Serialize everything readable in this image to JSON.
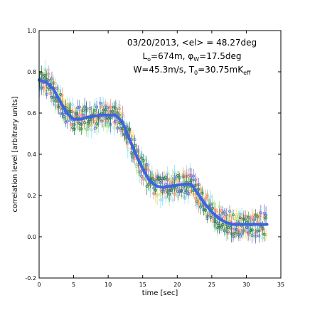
{
  "chart_data": {
    "type": "scatter",
    "xlabel": "time [sec]",
    "ylabel": "correlation level [arbitrary units]",
    "xlim": [
      0,
      35
    ],
    "ylim": [
      -0.2,
      1.0
    ],
    "x_ticks": [
      "0",
      "5",
      "10",
      "15",
      "20",
      "25",
      "30",
      "35"
    ],
    "y_ticks": [
      "-0.2",
      "0.0",
      "0.2",
      "0.4",
      "0.6",
      "0.8",
      "1.0"
    ],
    "annotation": {
      "line1": "03/20/2013, <el> = 48.27deg",
      "line2": {
        "a": "L",
        "a_sub": "o",
        "b": "=674m, φ",
        "b_sub": "W",
        "c": "=17.5deg"
      },
      "line3": {
        "a": "W=45.3m/s, T",
        "a_sub": "0",
        "b": "=30.75mK",
        "b_sub": "eff"
      }
    },
    "fit_line": {
      "color": "#3b66e0",
      "x": [
        0,
        1,
        2,
        3,
        4,
        5,
        6,
        7,
        8,
        9,
        10,
        11,
        12,
        13,
        14,
        15,
        16,
        17,
        18,
        19,
        20,
        21,
        22,
        23,
        24,
        25,
        26,
        27,
        28,
        29,
        30,
        31,
        32,
        33
      ],
      "y": [
        0.76,
        0.75,
        0.72,
        0.66,
        0.6,
        0.57,
        0.57,
        0.58,
        0.585,
        0.59,
        0.59,
        0.59,
        0.56,
        0.48,
        0.4,
        0.33,
        0.27,
        0.245,
        0.24,
        0.245,
        0.25,
        0.255,
        0.255,
        0.21,
        0.16,
        0.12,
        0.09,
        0.07,
        0.06,
        0.06,
        0.06,
        0.06,
        0.06,
        0.06
      ]
    },
    "scatter_series": [
      {
        "color": "#7fe0ff",
        "spread": 0.07,
        "seed": 1
      },
      {
        "color": "#9be37a",
        "spread": 0.06,
        "seed": 2
      },
      {
        "color": "#ffd95c",
        "spread": 0.05,
        "seed": 3
      },
      {
        "color": "#ff7f6e",
        "spread": 0.05,
        "seed": 4
      },
      {
        "color": "#5566cc",
        "spread": 0.06,
        "seed": 5
      },
      {
        "color": "#1f7a4d",
        "spread": 0.05,
        "seed": 6
      }
    ],
    "grid": false
  }
}
